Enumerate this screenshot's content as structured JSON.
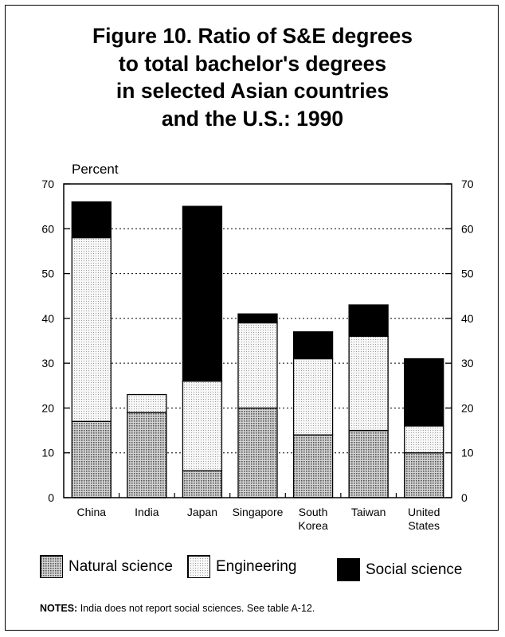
{
  "title_lines": [
    "Figure 10.  Ratio of S&E degrees",
    "to total bachelor's degrees",
    "in selected Asian countries",
    "and the U.S.:  1990"
  ],
  "notes": {
    "label": "NOTES:",
    "text": " India does not report social sciences.  See table A-12."
  },
  "legend": [
    {
      "name": "Natural science",
      "pattern": "dense-dots"
    },
    {
      "name": "Engineering",
      "pattern": "light-dots"
    },
    {
      "name": "Social science",
      "pattern": "solid-black"
    }
  ],
  "chart_data": {
    "type": "bar",
    "stacked": true,
    "ylabel": "Percent",
    "ylim": [
      0,
      70
    ],
    "yticks": [
      0,
      10,
      20,
      30,
      40,
      50,
      60,
      70
    ],
    "grid": "dotted horizontal lines",
    "legend_position": "bottom",
    "categories": [
      [
        "China"
      ],
      [
        "India"
      ],
      [
        "Japan"
      ],
      [
        "Singapore"
      ],
      [
        "South",
        "Korea"
      ],
      [
        "Taiwan"
      ],
      [
        "United",
        "States"
      ]
    ],
    "series": [
      {
        "name": "Natural science",
        "values": [
          17,
          19,
          6,
          20,
          14,
          15,
          10
        ]
      },
      {
        "name": "Engineering",
        "values": [
          41,
          4,
          20,
          19,
          17,
          21,
          6
        ]
      },
      {
        "name": "Social science",
        "values": [
          8,
          0,
          39,
          2,
          6,
          7,
          15
        ]
      }
    ],
    "colors": {
      "natural": "#b8b8b8",
      "engineering": "#e8e8e8",
      "social": "#000000"
    }
  }
}
